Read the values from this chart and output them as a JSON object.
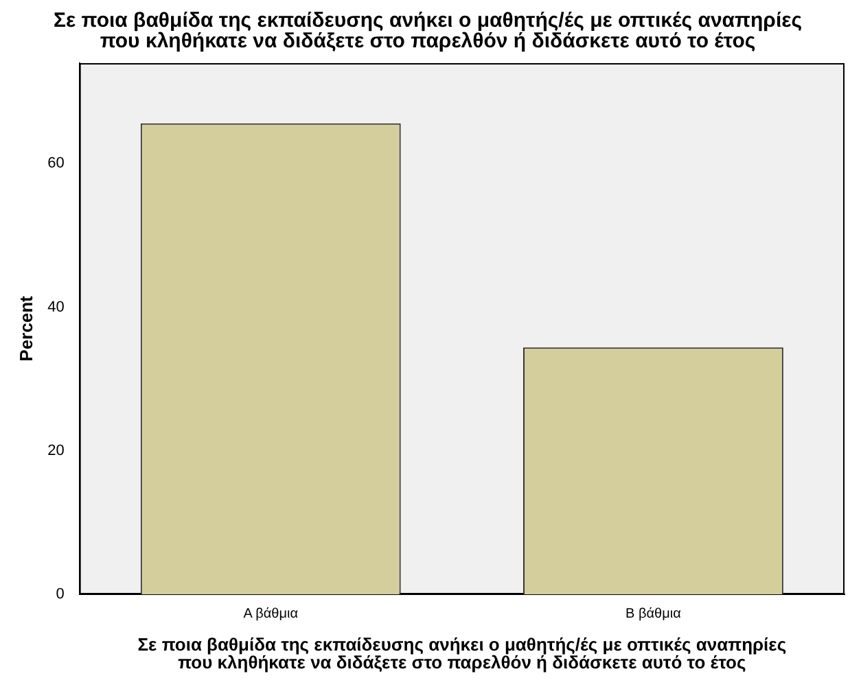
{
  "chart_data": {
    "type": "bar",
    "title": "Σε ποια βαθμίδα της εκπαίδευσης ανήκει ο μαθητής/ές με οπτικές αναπηρίες\nπου κληθήκατε να διδάξετε στο παρελθόν ή διδάσκετε αυτό το έτος",
    "xlabel": "Σε ποια βαθμίδα της εκπαίδευσης ανήκει ο μαθητής/ές με οπτικές αναπηρίες\nπου κληθήκατε να διδάξετε στο παρελθόν ή διδάσκετε αυτό το έτος",
    "ylabel": "Percent",
    "categories": [
      "Α βάθμια",
      "Β βάθμια"
    ],
    "values": [
      65.6,
      34.4
    ],
    "color": "#d3ce9b",
    "ylim": [
      0,
      74
    ],
    "yticks": [
      0,
      20,
      40,
      60
    ],
    "grid": false,
    "legend": false
  }
}
